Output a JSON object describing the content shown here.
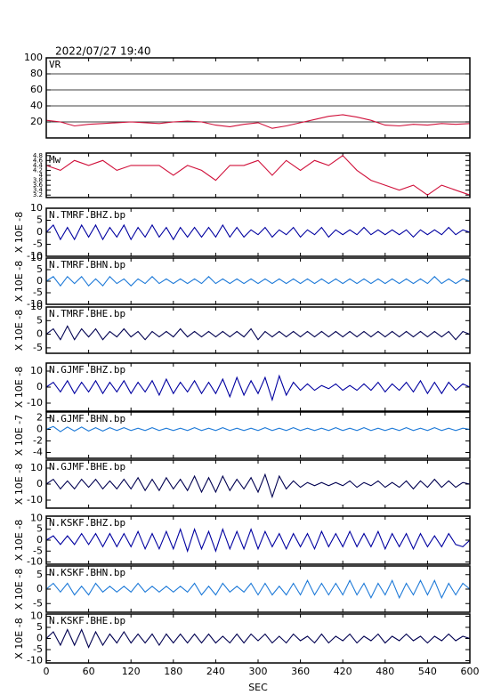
{
  "chart_data": [
    {
      "type": "line",
      "title": "2022/07/27 19:40",
      "label": "VR",
      "color": "#d0103a",
      "ylim": [
        0,
        100
      ],
      "yticks": [
        20,
        40,
        60,
        80,
        100
      ],
      "grid": true,
      "x": [
        0,
        20,
        40,
        60,
        80,
        100,
        120,
        140,
        160,
        180,
        200,
        220,
        240,
        260,
        280,
        300,
        320,
        340,
        360,
        380,
        400,
        420,
        440,
        460,
        480,
        500,
        520,
        540,
        560,
        580,
        600
      ],
      "values": [
        22,
        20,
        15,
        17,
        18,
        19,
        20,
        19,
        18,
        20,
        21,
        20,
        16,
        14,
        17,
        19,
        12,
        15,
        19,
        23,
        27,
        29,
        26,
        22,
        16,
        15,
        17,
        16,
        18,
        17,
        18
      ]
    },
    {
      "type": "line",
      "label": "Mw",
      "color": "#d0103a",
      "ylim": [
        3.1,
        4.9
      ],
      "yticks": [
        3.2,
        3.4,
        3.6,
        3.8,
        4,
        4.2,
        4.4,
        4.6,
        4.8
      ],
      "x": [
        0,
        20,
        40,
        60,
        80,
        100,
        120,
        140,
        160,
        180,
        200,
        220,
        240,
        260,
        280,
        300,
        320,
        340,
        360,
        380,
        400,
        420,
        440,
        460,
        480,
        500,
        520,
        540,
        560,
        580,
        600
      ],
      "values": [
        4.4,
        4.2,
        4.6,
        4.4,
        4.6,
        4.2,
        4.4,
        4.4,
        4.4,
        4,
        4.4,
        4.2,
        3.8,
        4.4,
        4.4,
        4.6,
        4,
        4.6,
        4.2,
        4.6,
        4.4,
        4.8,
        4.2,
        3.8,
        3.6,
        3.4,
        3.6,
        3.2,
        3.6,
        3.4,
        3.2
      ]
    },
    {
      "type": "line",
      "label": "N.TMRF.BHZ.bp",
      "ylabel": "X 10E -8",
      "color": "#0000a0",
      "ylim": [
        -10,
        10
      ],
      "yticks": [
        -10,
        -5,
        0,
        5,
        10
      ],
      "x": [
        0,
        10,
        20,
        30,
        40,
        50,
        60,
        70,
        80,
        90,
        100,
        110,
        120,
        130,
        140,
        150,
        160,
        170,
        180,
        190,
        200,
        210,
        220,
        230,
        240,
        250,
        260,
        270,
        280,
        290,
        300,
        310,
        320,
        330,
        340,
        350,
        360,
        370,
        380,
        390,
        400,
        410,
        420,
        430,
        440,
        450,
        460,
        470,
        480,
        490,
        500,
        510,
        520,
        530,
        540,
        550,
        560,
        570,
        580,
        590,
        600
      ],
      "values": [
        0,
        3,
        -3,
        2,
        -3,
        3,
        -2,
        3,
        -3,
        2,
        -2,
        3,
        -3,
        2,
        -2,
        3,
        -2,
        2,
        -3,
        2,
        -2,
        2,
        -2,
        2,
        -2,
        3,
        -2,
        2,
        -2,
        1,
        -1,
        2,
        -2,
        1,
        -1,
        2,
        -2,
        1,
        -1,
        2,
        -2,
        1,
        -1,
        1,
        -1,
        2,
        -1,
        1,
        -1,
        1,
        -1,
        1,
        -2,
        1,
        -1,
        1,
        -1,
        2,
        -1,
        1,
        0
      ]
    },
    {
      "type": "line",
      "label": "N.TMRF.BHN.bp",
      "ylabel": "X 10E -8",
      "color": "#1e7ad8",
      "ylim": [
        -10,
        10
      ],
      "yticks": [
        -10,
        -5,
        0,
        5,
        10
      ],
      "x": [
        0,
        10,
        20,
        30,
        40,
        50,
        60,
        70,
        80,
        90,
        100,
        110,
        120,
        130,
        140,
        150,
        160,
        170,
        180,
        190,
        200,
        210,
        220,
        230,
        240,
        250,
        260,
        270,
        280,
        290,
        300,
        310,
        320,
        330,
        340,
        350,
        360,
        370,
        380,
        390,
        400,
        410,
        420,
        430,
        440,
        450,
        460,
        470,
        480,
        490,
        500,
        510,
        520,
        530,
        540,
        550,
        560,
        570,
        580,
        590,
        600
      ],
      "values": [
        0,
        2,
        -2,
        2,
        -1,
        2,
        -2,
        1,
        -2,
        2,
        -1,
        1,
        -2,
        1,
        -1,
        2,
        -1,
        1,
        -1,
        1,
        -1,
        1,
        -1,
        2,
        -1,
        1,
        -1,
        1,
        -1,
        1,
        -1,
        1,
        -1,
        1,
        -1,
        1,
        -1,
        1,
        -1,
        1,
        -1,
        1,
        -1,
        1,
        -1,
        1,
        -1,
        1,
        -1,
        1,
        -1,
        1,
        -1,
        1,
        -1,
        2,
        -1,
        1,
        -1,
        1,
        0
      ]
    },
    {
      "type": "line",
      "label": "N.TMRF.BHE.bp",
      "ylabel": "X 10E -8",
      "color": "#000050",
      "ylim": [
        -7,
        10
      ],
      "yticks": [
        -5,
        0,
        5,
        10
      ],
      "x": [
        0,
        10,
        20,
        30,
        40,
        50,
        60,
        70,
        80,
        90,
        100,
        110,
        120,
        130,
        140,
        150,
        160,
        170,
        180,
        190,
        200,
        210,
        220,
        230,
        240,
        250,
        260,
        270,
        280,
        290,
        300,
        310,
        320,
        330,
        340,
        350,
        360,
        370,
        380,
        390,
        400,
        410,
        420,
        430,
        440,
        450,
        460,
        470,
        480,
        490,
        500,
        510,
        520,
        530,
        540,
        550,
        560,
        570,
        580,
        590,
        600
      ],
      "values": [
        0,
        2,
        -2,
        3,
        -2,
        2,
        -1,
        2,
        -2,
        1,
        -1,
        2,
        -1,
        1,
        -2,
        1,
        -1,
        1,
        -1,
        2,
        -1,
        1,
        -1,
        1,
        -1,
        1,
        -1,
        1,
        -1,
        2,
        -2,
        1,
        -1,
        1,
        -1,
        1,
        -1,
        1,
        -1,
        1,
        -1,
        1,
        -1,
        1,
        -1,
        1,
        -1,
        1,
        -1,
        1,
        -1,
        1,
        -1,
        1,
        -1,
        1,
        -1,
        1,
        -2,
        1,
        0
      ]
    },
    {
      "type": "line",
      "label": "N.GJMF.BHZ.bp",
      "ylabel": "X 10E -8",
      "color": "#0000a0",
      "ylim": [
        -15,
        15
      ],
      "yticks": [
        -10,
        0,
        10
      ],
      "x": [
        0,
        10,
        20,
        30,
        40,
        50,
        60,
        70,
        80,
        90,
        100,
        110,
        120,
        130,
        140,
        150,
        160,
        170,
        180,
        190,
        200,
        210,
        220,
        230,
        240,
        250,
        260,
        270,
        280,
        290,
        300,
        310,
        320,
        330,
        340,
        350,
        360,
        370,
        380,
        390,
        400,
        410,
        420,
        430,
        440,
        450,
        460,
        470,
        480,
        490,
        500,
        510,
        520,
        530,
        540,
        550,
        560,
        570,
        580,
        590,
        600
      ],
      "values": [
        0,
        3,
        -3,
        4,
        -4,
        3,
        -3,
        4,
        -4,
        3,
        -3,
        4,
        -4,
        3,
        -3,
        4,
        -5,
        5,
        -4,
        3,
        -3,
        4,
        -4,
        3,
        -4,
        5,
        -6,
        6,
        -5,
        4,
        -4,
        6,
        -8,
        7,
        -5,
        3,
        -2,
        2,
        -2,
        1,
        -1,
        2,
        -2,
        1,
        -2,
        2,
        -2,
        3,
        -3,
        2,
        -2,
        3,
        -3,
        4,
        -4,
        3,
        -4,
        3,
        -2,
        2,
        0
      ]
    },
    {
      "type": "line",
      "label": "N.GJMF.BHN.bp",
      "ylabel": "X 10E -7",
      "color": "#1e7ad8",
      "ylim": [
        -5,
        3
      ],
      "yticks": [
        -4,
        -2,
        0,
        2
      ],
      "x": [
        0,
        10,
        20,
        30,
        40,
        50,
        60,
        70,
        80,
        90,
        100,
        110,
        120,
        130,
        140,
        150,
        160,
        170,
        180,
        190,
        200,
        210,
        220,
        230,
        240,
        250,
        260,
        270,
        280,
        290,
        300,
        310,
        320,
        330,
        340,
        350,
        360,
        370,
        380,
        390,
        400,
        410,
        420,
        430,
        440,
        450,
        460,
        470,
        480,
        490,
        500,
        510,
        520,
        530,
        540,
        550,
        560,
        570,
        580,
        590,
        600
      ],
      "values": [
        0,
        0.5,
        -0.4,
        0.4,
        -0.3,
        0.4,
        -0.3,
        0.3,
        -0.3,
        0.3,
        -0.2,
        0.3,
        -0.2,
        0.2,
        -0.2,
        0.3,
        -0.2,
        0.2,
        -0.2,
        0.2,
        -0.2,
        0.3,
        -0.2,
        0.2,
        -0.2,
        0.3,
        -0.2,
        0.2,
        -0.2,
        0.2,
        -0.2,
        0.3,
        -0.2,
        0.2,
        -0.2,
        0.3,
        -0.2,
        0.2,
        -0.2,
        0.2,
        -0.2,
        0.3,
        -0.2,
        0.2,
        -0.2,
        0.3,
        -0.2,
        0.2,
        -0.2,
        0.2,
        -0.2,
        0.3,
        -0.2,
        0.2,
        -0.2,
        0.3,
        -0.2,
        0.2,
        -0.2,
        0.2,
        0
      ]
    },
    {
      "type": "line",
      "label": "N.GJMF.BHE.bp",
      "ylabel": "X 10E -8",
      "color": "#000050",
      "ylim": [
        -15,
        15
      ],
      "yticks": [
        -10,
        0,
        10
      ],
      "x": [
        0,
        10,
        20,
        30,
        40,
        50,
        60,
        70,
        80,
        90,
        100,
        110,
        120,
        130,
        140,
        150,
        160,
        170,
        180,
        190,
        200,
        210,
        220,
        230,
        240,
        250,
        260,
        270,
        280,
        290,
        300,
        310,
        320,
        330,
        340,
        350,
        360,
        370,
        380,
        390,
        400,
        410,
        420,
        430,
        440,
        450,
        460,
        470,
        480,
        490,
        500,
        510,
        520,
        530,
        540,
        550,
        560,
        570,
        580,
        590,
        600
      ],
      "values": [
        0,
        3,
        -3,
        2,
        -3,
        3,
        -2,
        3,
        -3,
        2,
        -3,
        3,
        -3,
        4,
        -4,
        3,
        -4,
        4,
        -3,
        3,
        -4,
        5,
        -5,
        4,
        -5,
        5,
        -4,
        3,
        -3,
        4,
        -5,
        6,
        -8,
        5,
        -3,
        2,
        -2,
        1,
        -1,
        1,
        -1,
        1,
        -1,
        2,
        -2,
        1,
        -1,
        2,
        -2,
        1,
        -2,
        2,
        -3,
        2,
        -2,
        3,
        -2,
        2,
        -2,
        1,
        0
      ]
    },
    {
      "type": "line",
      "label": "N.KSKF.BHZ.bp",
      "ylabel": "X 10E -8",
      "color": "#0000a0",
      "ylim": [
        -11,
        11
      ],
      "yticks": [
        -10,
        -5,
        0,
        5,
        10
      ],
      "x": [
        0,
        10,
        20,
        30,
        40,
        50,
        60,
        70,
        80,
        90,
        100,
        110,
        120,
        130,
        140,
        150,
        160,
        170,
        180,
        190,
        200,
        210,
        220,
        230,
        240,
        250,
        260,
        270,
        280,
        290,
        300,
        310,
        320,
        330,
        340,
        350,
        360,
        370,
        380,
        390,
        400,
        410,
        420,
        430,
        440,
        450,
        460,
        470,
        480,
        490,
        500,
        510,
        520,
        530,
        540,
        550,
        560,
        570,
        580,
        590,
        600
      ],
      "values": [
        0,
        2,
        -2,
        2,
        -2,
        3,
        -2,
        3,
        -3,
        3,
        -3,
        3,
        -3,
        4,
        -4,
        3,
        -4,
        4,
        -4,
        5,
        -5,
        5,
        -4,
        4,
        -5,
        5,
        -4,
        4,
        -4,
        5,
        -4,
        4,
        -3,
        3,
        -4,
        3,
        -3,
        3,
        -4,
        4,
        -3,
        3,
        -3,
        4,
        -3,
        3,
        -3,
        4,
        -4,
        3,
        -3,
        3,
        -4,
        3,
        -3,
        2,
        -3,
        3,
        -2,
        -3,
        0
      ]
    },
    {
      "type": "line",
      "label": "N.KSKF.BHN.bp",
      "ylabel": "X 10E -8",
      "color": "#1e7ad8",
      "ylim": [
        -8,
        8
      ],
      "yticks": [
        -5,
        0,
        5
      ],
      "x": [
        0,
        10,
        20,
        30,
        40,
        50,
        60,
        70,
        80,
        90,
        100,
        110,
        120,
        130,
        140,
        150,
        160,
        170,
        180,
        190,
        200,
        210,
        220,
        230,
        240,
        250,
        260,
        270,
        280,
        290,
        300,
        310,
        320,
        330,
        340,
        350,
        360,
        370,
        380,
        390,
        400,
        410,
        420,
        430,
        440,
        450,
        460,
        470,
        480,
        490,
        500,
        510,
        520,
        530,
        540,
        550,
        560,
        570,
        580,
        590,
        600
      ],
      "values": [
        0,
        2,
        -1,
        2,
        -2,
        1,
        -2,
        2,
        -1,
        1,
        -1,
        1,
        -1,
        2,
        -1,
        1,
        -1,
        1,
        -1,
        1,
        -1,
        2,
        -2,
        1,
        -2,
        2,
        -1,
        1,
        -1,
        2,
        -2,
        2,
        -2,
        1,
        -2,
        2,
        -2,
        3,
        -2,
        2,
        -2,
        2,
        -2,
        3,
        -2,
        2,
        -3,
        2,
        -2,
        3,
        -3,
        2,
        -2,
        3,
        -2,
        3,
        -3,
        2,
        -2,
        2,
        0
      ]
    },
    {
      "type": "line",
      "label": "N.KSKF.BHE.bp",
      "ylabel": "X 10E -8",
      "xlabel": "SEC",
      "color": "#000050",
      "ylim": [
        -11,
        11
      ],
      "yticks": [
        -10,
        -5,
        0,
        5,
        10
      ],
      "xlim": [
        0,
        600
      ],
      "xticks": [
        0,
        60,
        120,
        180,
        240,
        300,
        360,
        420,
        480,
        540,
        600
      ],
      "x": [
        0,
        10,
        20,
        30,
        40,
        50,
        60,
        70,
        80,
        90,
        100,
        110,
        120,
        130,
        140,
        150,
        160,
        170,
        180,
        190,
        200,
        210,
        220,
        230,
        240,
        250,
        260,
        270,
        280,
        290,
        300,
        310,
        320,
        330,
        340,
        350,
        360,
        370,
        380,
        390,
        400,
        410,
        420,
        430,
        440,
        450,
        460,
        470,
        480,
        490,
        500,
        510,
        520,
        530,
        540,
        550,
        560,
        570,
        580,
        590,
        600
      ],
      "values": [
        0,
        3,
        -3,
        4,
        -3,
        4,
        -4,
        3,
        -3,
        2,
        -2,
        3,
        -2,
        2,
        -2,
        2,
        -3,
        2,
        -2,
        2,
        -2,
        2,
        -2,
        2,
        -2,
        1,
        -2,
        2,
        -2,
        2,
        -1,
        2,
        -2,
        1,
        -2,
        2,
        -1,
        1,
        -2,
        2,
        -2,
        1,
        -1,
        2,
        -2,
        1,
        -1,
        2,
        -2,
        1,
        -1,
        2,
        -1,
        1,
        -2,
        1,
        -1,
        2,
        -1,
        1,
        0
      ]
    }
  ]
}
